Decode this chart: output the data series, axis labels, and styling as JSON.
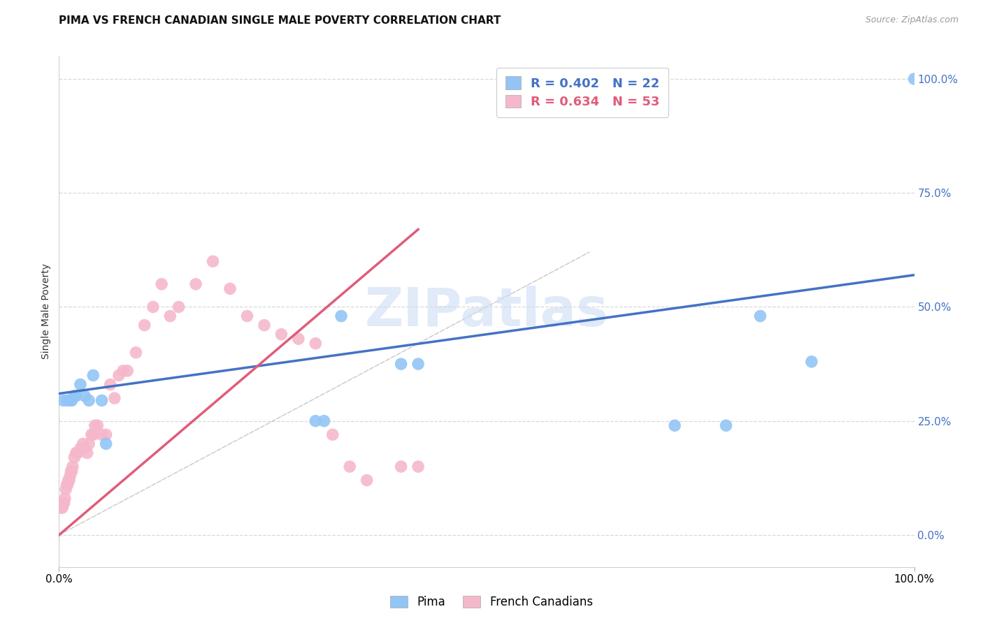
{
  "title": "PIMA VS FRENCH CANADIAN SINGLE MALE POVERTY CORRELATION CHART",
  "source": "Source: ZipAtlas.com",
  "ylabel": "Single Male Poverty",
  "right_yticks_labels": [
    "100.0%",
    "75.0%",
    "50.0%",
    "25.0%",
    "0.0%"
  ],
  "right_ytick_vals": [
    1.0,
    0.75,
    0.5,
    0.25,
    0.0
  ],
  "watermark": "ZIPatlas",
  "pima_R": 0.402,
  "pima_N": 22,
  "fc_R": 0.634,
  "fc_N": 53,
  "pima_color": "#92c5f5",
  "fc_color": "#f5b8cb",
  "pima_line_color": "#4472c4",
  "fc_line_color": "#e05c7a",
  "diagonal_color": "#c8c8c8",
  "pima_x": [
    0.005,
    0.01,
    0.013,
    0.015,
    0.018,
    0.02,
    0.025,
    0.03,
    0.035,
    0.04,
    0.05,
    0.055,
    0.3,
    0.31,
    0.33,
    0.4,
    0.42,
    0.72,
    0.78,
    0.82,
    0.88,
    1.0
  ],
  "pima_y": [
    0.295,
    0.295,
    0.295,
    0.295,
    0.305,
    0.305,
    0.33,
    0.305,
    0.295,
    0.35,
    0.295,
    0.2,
    0.25,
    0.25,
    0.48,
    0.375,
    0.375,
    0.24,
    0.24,
    0.48,
    0.38,
    1.0
  ],
  "fc_x": [
    0.002,
    0.003,
    0.004,
    0.005,
    0.006,
    0.007,
    0.008,
    0.009,
    0.01,
    0.011,
    0.012,
    0.013,
    0.014,
    0.015,
    0.016,
    0.018,
    0.02,
    0.022,
    0.025,
    0.028,
    0.03,
    0.033,
    0.035,
    0.038,
    0.04,
    0.042,
    0.045,
    0.05,
    0.055,
    0.06,
    0.065,
    0.07,
    0.075,
    0.08,
    0.09,
    0.1,
    0.11,
    0.12,
    0.13,
    0.14,
    0.16,
    0.18,
    0.2,
    0.22,
    0.24,
    0.26,
    0.28,
    0.3,
    0.32,
    0.34,
    0.36,
    0.4,
    0.42
  ],
  "fc_y": [
    0.06,
    0.06,
    0.06,
    0.07,
    0.07,
    0.08,
    0.1,
    0.11,
    0.11,
    0.12,
    0.12,
    0.13,
    0.14,
    0.14,
    0.15,
    0.17,
    0.18,
    0.18,
    0.19,
    0.2,
    0.19,
    0.18,
    0.2,
    0.22,
    0.22,
    0.24,
    0.24,
    0.22,
    0.22,
    0.33,
    0.3,
    0.35,
    0.36,
    0.36,
    0.4,
    0.46,
    0.5,
    0.55,
    0.48,
    0.5,
    0.55,
    0.6,
    0.54,
    0.48,
    0.46,
    0.44,
    0.43,
    0.42,
    0.22,
    0.15,
    0.12,
    0.15,
    0.15
  ],
  "pima_line_x": [
    0.0,
    1.0
  ],
  "pima_line_y": [
    0.31,
    0.57
  ],
  "fc_line_x": [
    0.0,
    0.42
  ],
  "fc_line_y": [
    0.0,
    0.67
  ],
  "xlim": [
    0.0,
    1.0
  ],
  "ylim": [
    -0.07,
    1.05
  ],
  "background_color": "#ffffff",
  "grid_color": "#d8d8d8",
  "title_fontsize": 11,
  "legend_fontsize": 13
}
